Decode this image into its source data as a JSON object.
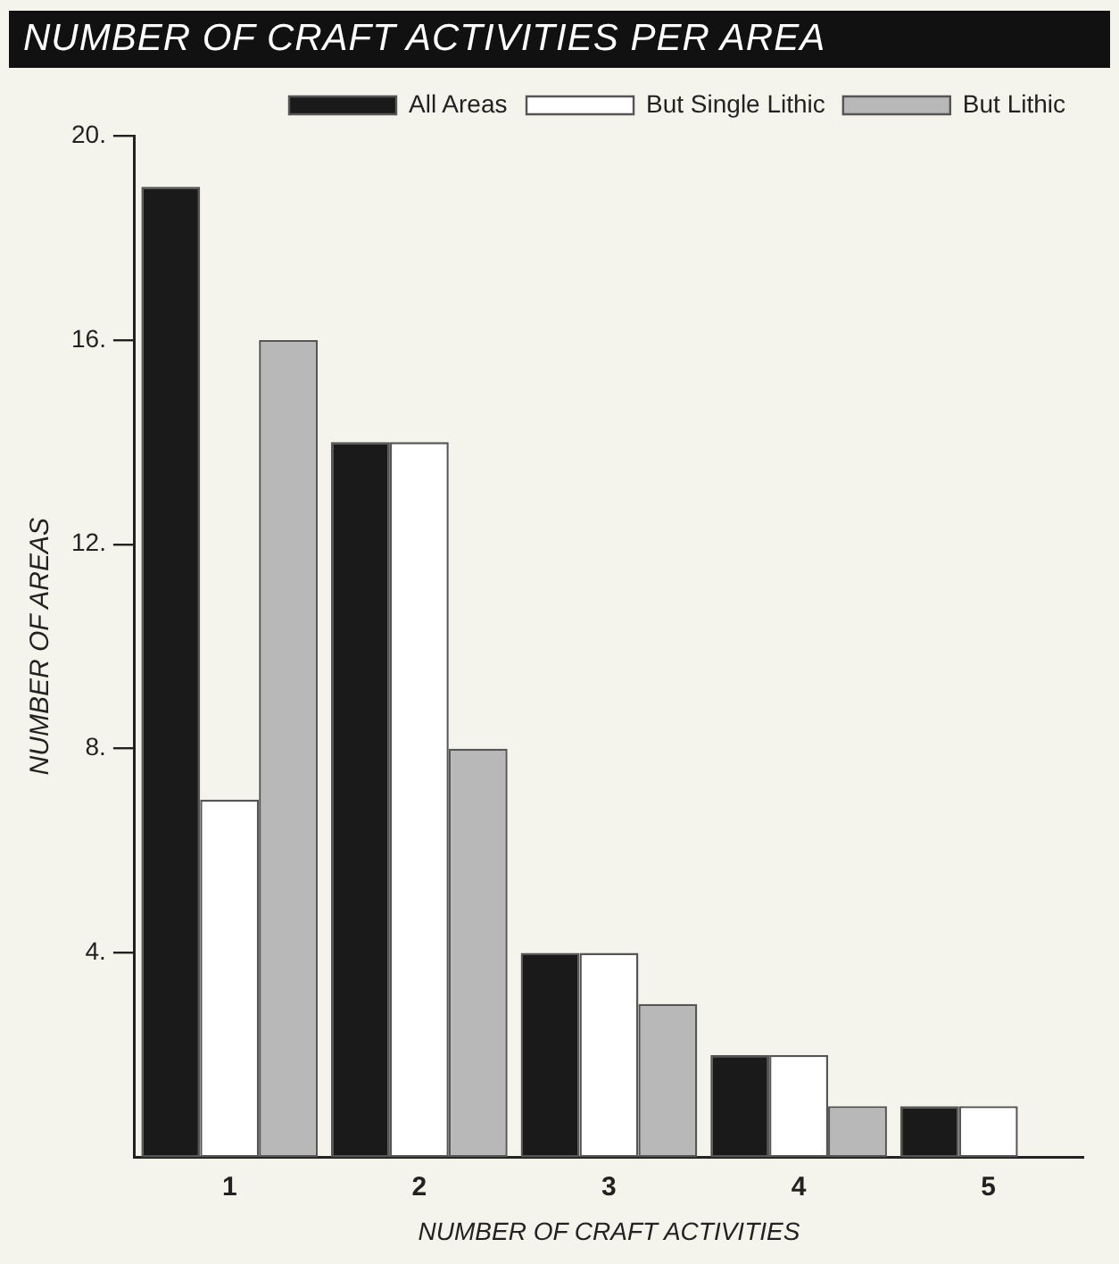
{
  "chart_data": {
    "type": "bar",
    "title": "NUMBER OF CRAFT ACTIVITIES PER AREA",
    "xlabel": "NUMBER OF CRAFT ACTIVITIES",
    "ylabel": "NUMBER OF AREAS",
    "categories": [
      "1",
      "2",
      "3",
      "4",
      "5"
    ],
    "series": [
      {
        "name": "All Areas",
        "color": "#1a1a1a",
        "values": [
          19,
          14,
          4,
          2,
          1
        ]
      },
      {
        "name": "But Single Lithic",
        "color": "#ffffff",
        "values": [
          7,
          14,
          4,
          2,
          1
        ]
      },
      {
        "name": "But Lithic",
        "color": "#b8b8b8",
        "values": [
          16,
          8,
          3,
          1,
          null
        ]
      }
    ],
    "ylim": [
      0,
      20
    ],
    "yticks": [
      {
        "value": 4,
        "label": "4."
      },
      {
        "value": 8,
        "label": "8."
      },
      {
        "value": 12,
        "label": "12."
      },
      {
        "value": 16,
        "label": "16."
      },
      {
        "value": 20,
        "label": "20."
      }
    ],
    "grid": false,
    "legend": "top right"
  }
}
